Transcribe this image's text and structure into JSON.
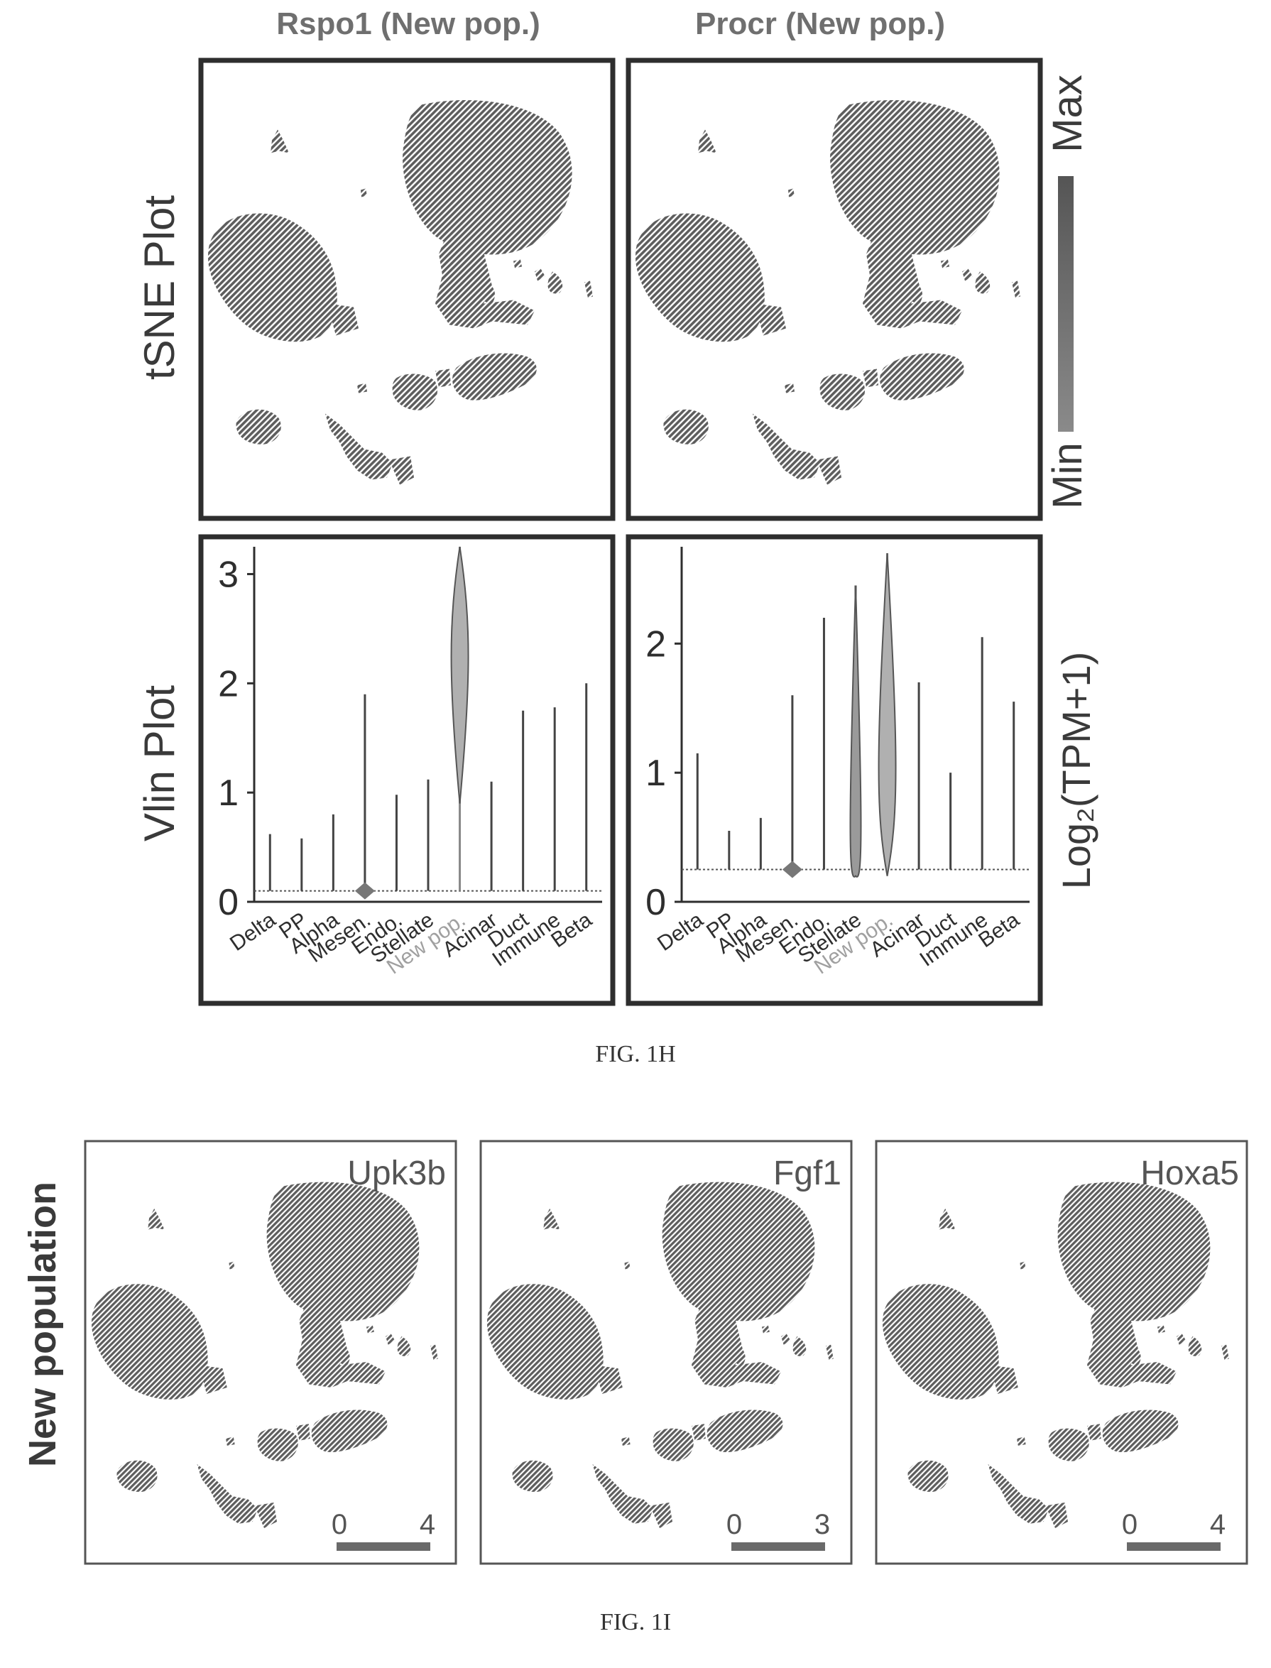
{
  "figure_h": {
    "caption": "FIG. 1H",
    "panel_titles": [
      "Rspo1 (New pop.)",
      "Procr (New pop.)"
    ],
    "row_labels": [
      "tSNE Plot",
      "Vlin Plot"
    ],
    "colorbar": {
      "min_label": "Min",
      "max_label": "Max"
    },
    "violin_ylabel": "Log₂(TPM+1)"
  },
  "figure_i": {
    "caption": "FIG. 1I",
    "row_label": "New population",
    "panels": [
      {
        "gene": "Upk3b",
        "scale_min": "0",
        "scale_max": "4"
      },
      {
        "gene": "Fgf1",
        "scale_min": "0",
        "scale_max": "3"
      },
      {
        "gene": "Hoxa5",
        "scale_min": "0",
        "scale_max": "4"
      }
    ]
  },
  "colors": {
    "points": "#6a6a6a",
    "frame": "#2e2e2e",
    "violin_highlight": "#a8a8a8",
    "new_pop_label": "#a0a0a0"
  },
  "chart_data": [
    {
      "type": "violin",
      "title": "Rspo1 (New pop.)",
      "xlabel": "",
      "ylabel": "Log₂(TPM+1)",
      "categories": [
        "Delta",
        "PP",
        "Alpha",
        "Mesen.",
        "Endo.",
        "Stellate",
        "New pop.",
        "Acinar",
        "Duct",
        "Immune",
        "Beta"
      ],
      "ylim": [
        0,
        3.25
      ],
      "yticks": [
        0,
        1,
        2,
        3
      ],
      "series": [
        {
          "max": [
            0.62,
            0.58,
            0.8,
            1.9,
            0.98,
            1.12,
            3.25,
            1.1,
            1.75,
            1.78,
            2.0
          ],
          "median": [
            0,
            0,
            0,
            0,
            0,
            0,
            2.3,
            0,
            0,
            0,
            0
          ]
        }
      ]
    },
    {
      "type": "violin",
      "title": "Procr (New pop.)",
      "xlabel": "",
      "ylabel": "Log₂(TPM+1)",
      "categories": [
        "Delta",
        "PP",
        "Alpha",
        "Mesen.",
        "Endo.",
        "Stellate",
        "New pop.",
        "Acinar",
        "Duct",
        "Immune",
        "Beta"
      ],
      "ylim": [
        0,
        2.75
      ],
      "yticks": [
        0,
        1,
        2
      ],
      "series": [
        {
          "max": [
            1.15,
            0.55,
            0.65,
            1.6,
            2.2,
            2.45,
            2.7,
            1.7,
            1.0,
            2.05,
            1.55
          ],
          "median": [
            0,
            0,
            0,
            0,
            0,
            0.35,
            0.9,
            0,
            0,
            0,
            0
          ]
        }
      ]
    }
  ]
}
